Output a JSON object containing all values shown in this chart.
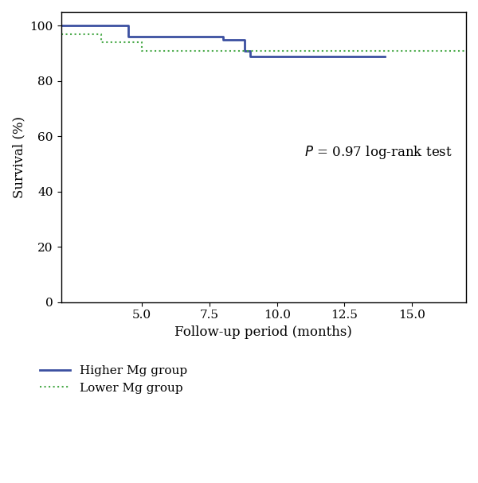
{
  "higher_mg_x": [
    2,
    4.5,
    4.5,
    8.0,
    8.0,
    8.8,
    8.8,
    9.0,
    9.0,
    14.0
  ],
  "higher_mg_y": [
    100,
    100,
    96,
    96,
    95,
    95,
    91,
    91,
    89,
    89
  ],
  "lower_mg_x": [
    2,
    3.5,
    3.5,
    5.0,
    5.0,
    7.5,
    7.5,
    9.0,
    9.0,
    17.0
  ],
  "lower_mg_y": [
    97,
    97,
    94,
    94,
    91,
    91,
    91,
    91,
    91,
    91
  ],
  "xlabel": "Follow-up period (months)",
  "ylabel": "Survival (%)",
  "xlim": [
    2,
    17
  ],
  "ylim": [
    0,
    105
  ],
  "xticks": [
    5,
    7.5,
    10,
    12.5,
    15
  ],
  "yticks": [
    0,
    20,
    40,
    60,
    80,
    100
  ],
  "pvalue_x": 11,
  "pvalue_y": 53,
  "higher_color": "#3b4fa0",
  "lower_color": "#4aaa4a",
  "legend_higher": "Higher Mg group",
  "legend_lower": "Lower Mg group",
  "background_color": "#ffffff",
  "label_fontsize": 12,
  "tick_fontsize": 11,
  "annot_fontsize": 12
}
